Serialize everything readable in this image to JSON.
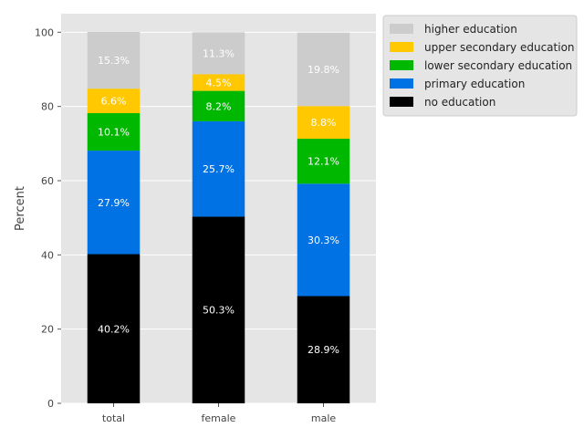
{
  "chart_data": {
    "type": "bar",
    "stacked": true,
    "categories": [
      "total",
      "female",
      "male"
    ],
    "series": [
      {
        "name": "no education",
        "color": "#000000",
        "label_color": "#ffffff",
        "values": [
          40.2,
          50.3,
          28.9
        ]
      },
      {
        "name": "primary education",
        "color": "#0072e4",
        "label_color": "#ffffff",
        "values": [
          27.9,
          25.7,
          30.3
        ]
      },
      {
        "name": "lower secondary education",
        "color": "#00b800",
        "label_color": "#ffffff",
        "values": [
          10.1,
          8.2,
          12.1
        ]
      },
      {
        "name": "upper secondary education",
        "color": "#ffc800",
        "label_color": "#ffffff",
        "values": [
          6.6,
          4.5,
          8.8
        ]
      },
      {
        "name": "higher education",
        "color": "#cccccc",
        "label_color": "#ffffff",
        "values": [
          15.3,
          11.3,
          19.8
        ]
      }
    ],
    "value_labels": [
      [
        "40.2%",
        "50.3%",
        "28.9%"
      ],
      [
        "27.9%",
        "25.7%",
        "30.3%"
      ],
      [
        "10.1%",
        "8.2%",
        "12.1%"
      ],
      [
        "6.6%",
        "4.5%",
        "8.8%"
      ],
      [
        "15.3%",
        "11.3%",
        "19.8%"
      ]
    ],
    "ylabel": "Percent",
    "xlabel": "",
    "ylim": [
      0,
      105
    ],
    "yticks": [
      0,
      20,
      40,
      60,
      80,
      100
    ],
    "ytick_labels": [
      "0",
      "20",
      "40",
      "60",
      "80",
      "100"
    ],
    "grid": true,
    "background": "#e5e5e5",
    "legend_position": "outside-top-right",
    "legend_order": [
      "higher education",
      "upper secondary education",
      "lower secondary education",
      "primary education",
      "no education"
    ]
  }
}
